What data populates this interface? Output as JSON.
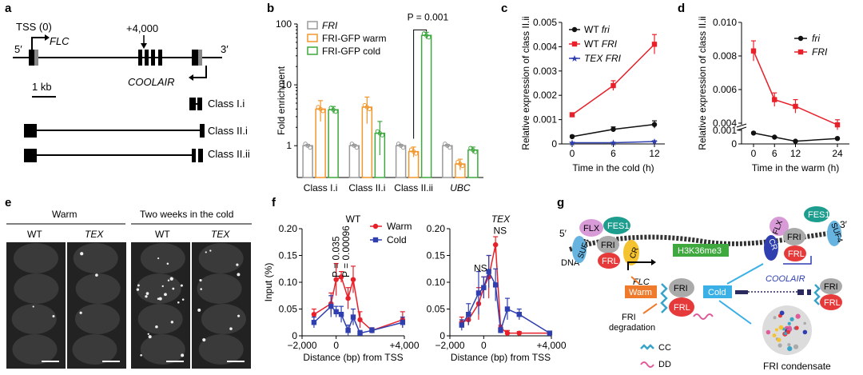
{
  "panel_letters": [
    "a",
    "b",
    "c",
    "d",
    "e",
    "f",
    "g"
  ],
  "panel_a": {
    "tss": "TSS (0)",
    "gene": "FLC",
    "pos": "+4,000",
    "five": "5′",
    "three": "3′",
    "antisense": "COOLAIR",
    "scale": "1 kb",
    "classes": [
      "Class I.i",
      "Class II.i",
      "Class II.ii"
    ]
  },
  "panel_e": {
    "warm": "Warm",
    "cold": "Two weeks in the cold",
    "columns": [
      "WT",
      "TEX",
      "WT",
      "TEX"
    ]
  },
  "panel_g": {
    "five": "5′",
    "three": "3′",
    "dna": "DNA",
    "flx": "FLX",
    "fes1": "FES1",
    "suf4": "SUF4",
    "fri": "FRI",
    "frl": "FRL",
    "cr": "CR",
    "mark": "H3K36me3",
    "flc": "FLC",
    "coolair": "COOLAIR",
    "warm": "Warm",
    "cold": "Cold",
    "degradation_1": "FRI",
    "degradation_2": "degradation",
    "cc": "CC",
    "dd": "DD",
    "condensate": "FRI condensate"
  },
  "colors": {
    "grey": "#9a9a9a",
    "orange": "#f2962c",
    "green": "#3fa83f",
    "red": "#e8202a",
    "blue": "#2f3fb0",
    "black": "#111111"
  },
  "chart_data": [
    {
      "id": "b",
      "type": "bar",
      "title": "",
      "ylabel": "Fold enrichment",
      "yscale": "log",
      "ylim": [
        0.3,
        100
      ],
      "yticks": [
        "1",
        "10",
        "100"
      ],
      "categories": [
        "Class I.i",
        "Class II.i",
        "Class II.ii",
        "UBC"
      ],
      "series": [
        {
          "name": "FRI",
          "color": "#9a9a9a",
          "values": [
            1,
            1,
            1,
            1
          ],
          "err": [
            0.05,
            0.05,
            0.05,
            0.05
          ]
        },
        {
          "name": "FRI-GFP warm",
          "color": "#f2962c",
          "values": [
            4.0,
            4.3,
            0.8,
            0.5
          ],
          "err": [
            1.5,
            2.0,
            0.15,
            0.1
          ]
        },
        {
          "name": "FRI-GFP cold",
          "color": "#3fa83f",
          "values": [
            3.9,
            1.6,
            65,
            0.85
          ],
          "err": [
            0.5,
            0.9,
            8,
            0.1
          ]
        }
      ],
      "annotation": "P = 0.001"
    },
    {
      "id": "c",
      "type": "line",
      "xlabel": "Time in the cold (h)",
      "ylabel": "Relative expression of class II.ii",
      "x": [
        0,
        6,
        12
      ],
      "ylim": [
        0,
        0.005
      ],
      "yticks": [
        "0",
        "0.001",
        "0.002",
        "0.003",
        "0.004",
        "0.005"
      ],
      "xticks": [
        "0",
        "6",
        "12"
      ],
      "series": [
        {
          "name": "WT fri",
          "color": "#111111",
          "marker": "circle",
          "values": [
            0.0003,
            0.0006,
            0.0008
          ],
          "err": [
            5e-05,
            0.0001,
            0.00015
          ]
        },
        {
          "name": "WT FRI",
          "color": "#e8202a",
          "marker": "square",
          "values": [
            0.0012,
            0.0024,
            0.0041
          ],
          "err": [
            5e-05,
            0.0002,
            0.0004
          ]
        },
        {
          "name": "TEX FRI",
          "color": "#2f3fb0",
          "marker": "star",
          "values": [
            5e-05,
            5e-05,
            0.0001
          ],
          "err": [
            2e-05,
            2e-05,
            3e-05
          ]
        }
      ]
    },
    {
      "id": "d",
      "type": "line",
      "xlabel": "Time in the warm (h)",
      "ylabel": "Relative expression of class II.ii",
      "x": [
        0,
        6,
        12,
        24
      ],
      "yticks": [
        "0",
        "0.001",
        "0.004",
        "0.006",
        "0.008",
        "0.010"
      ],
      "xticks": [
        "0",
        "6",
        "12",
        "24"
      ],
      "series": [
        {
          "name": "fri",
          "color": "#111111",
          "marker": "circle",
          "values": [
            0.0008,
            0.0005,
            0.0002,
            0.0004
          ],
          "err": [
            5e-05,
            5e-05,
            5e-05,
            5e-05
          ]
        },
        {
          "name": "FRI",
          "color": "#e8202a",
          "marker": "square",
          "values": [
            0.0083,
            0.0054,
            0.005,
            0.0039
          ],
          "err": [
            0.0006,
            0.0004,
            0.0004,
            0.0003
          ]
        }
      ]
    },
    {
      "id": "f1",
      "type": "line",
      "title": "WT",
      "xlabel": "Distance (bp) from TSS",
      "ylabel": "Input (%)",
      "ylim": [
        0,
        0.2
      ],
      "yticks": [
        "0",
        "0.05",
        "0.10",
        "0.15",
        "0.20"
      ],
      "xticks": [
        "−2,000",
        "0",
        "+4,000"
      ],
      "x": [
        -1300,
        -300,
        0,
        300,
        700,
        1000,
        1400,
        2100,
        3900
      ],
      "series": [
        {
          "name": "Warm",
          "color": "#e8202a",
          "marker": "circle",
          "values": [
            0.04,
            0.06,
            0.105,
            0.11,
            0.07,
            0.105,
            0.03,
            0.01,
            0.03
          ],
          "err": [
            0.01,
            0.02,
            0.03,
            0.01,
            0.02,
            0.025,
            0.015,
            0.005,
            0.015
          ]
        },
        {
          "name": "Cold",
          "color": "#2f3fb0",
          "marker": "square",
          "values": [
            0.025,
            0.055,
            0.045,
            0.04,
            0.01,
            0.035,
            0.005,
            0.01,
            0.025
          ],
          "err": [
            0.01,
            0.02,
            0.01,
            0.015,
            0.01,
            0.015,
            0.005,
            0.005,
            0.01
          ]
        }
      ],
      "annotations": [
        "P = 0.035",
        "P = 0.00096"
      ]
    },
    {
      "id": "f2",
      "type": "line",
      "title": "TEX",
      "xlabel": "Distance (bp) from TSS",
      "ylabel": "",
      "ylim": [
        0,
        0.2
      ],
      "yticks": [
        "0",
        "0.05",
        "0.10",
        "0.15",
        "0.20"
      ],
      "xticks": [
        "−2,000",
        "0",
        "+4,000"
      ],
      "x": [
        -1300,
        -900,
        -300,
        0,
        300,
        700,
        1000,
        1400,
        2100,
        3900
      ],
      "series": [
        {
          "name": "Warm",
          "color": "#e8202a",
          "marker": "circle",
          "values": [
            0.025,
            0.03,
            0.06,
            0.09,
            0.11,
            0.17,
            0.015,
            0.005,
            0.005,
            0.005
          ],
          "err": [
            0.01,
            0.01,
            0.03,
            0.02,
            0.04,
            0.015,
            0.005,
            0.005,
            0.003,
            0.003
          ]
        },
        {
          "name": "Cold",
          "color": "#2f3fb0",
          "marker": "square",
          "values": [
            0.02,
            0.04,
            0.08,
            0.09,
            0.12,
            0.095,
            0.01,
            0.05,
            0.04,
            0.005
          ],
          "err": [
            0.01,
            0.02,
            0.04,
            0.02,
            0.03,
            0.03,
            0.005,
            0.02,
            0.01,
            0.003
          ]
        }
      ],
      "annotations": [
        "NS",
        "NS"
      ]
    }
  ]
}
